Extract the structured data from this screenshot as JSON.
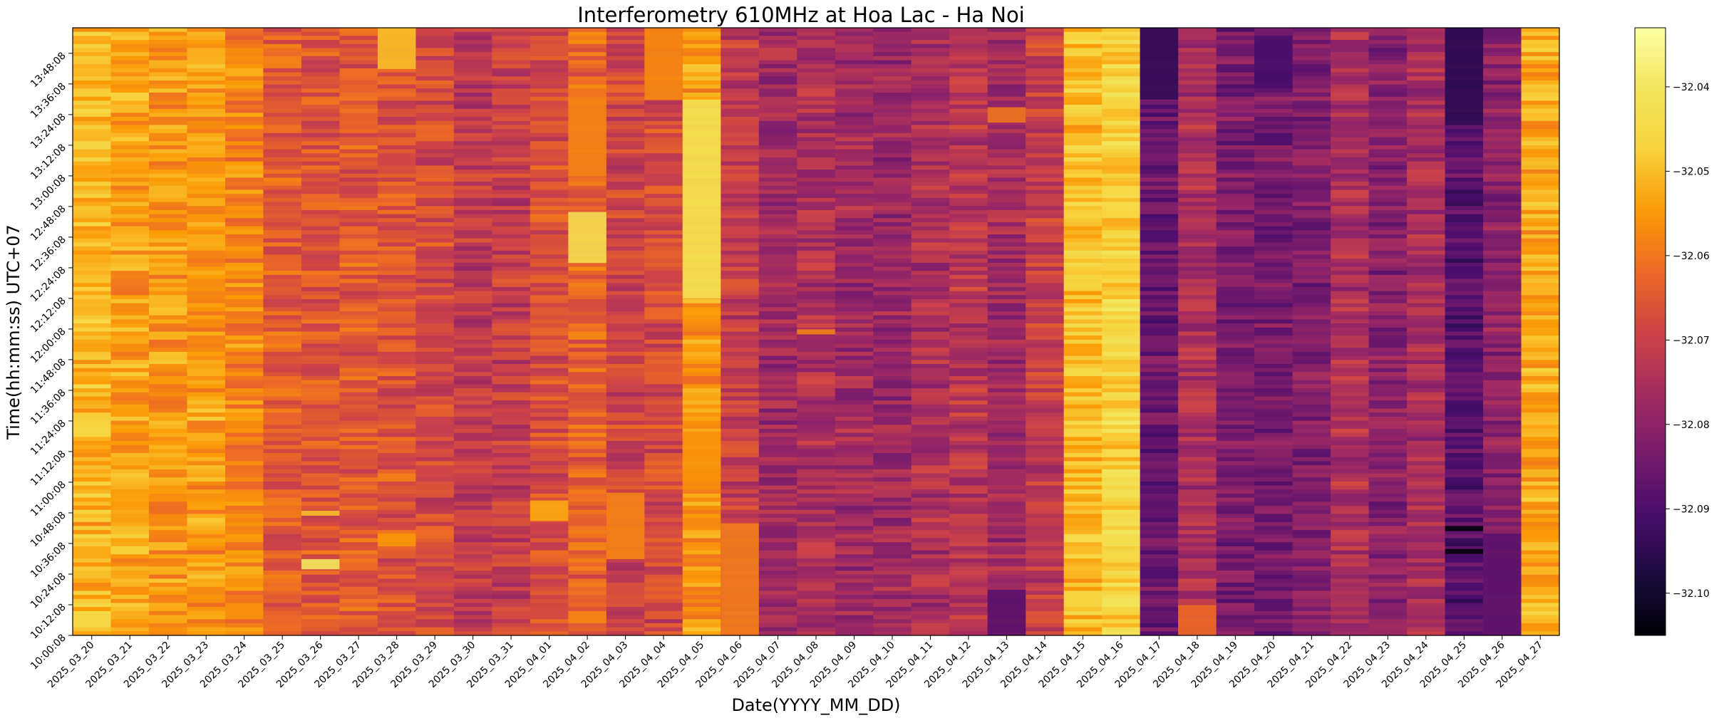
{
  "chart_data": {
    "type": "heatmap",
    "title": "Interferometry 610MHz at Hoa Lac - Ha Noi",
    "xlabel": "Date(YYYY_MM_DD)",
    "ylabel": "Time(hh:mm:ss) UTC+07",
    "colormap": "inferno",
    "colorbar": {
      "vmin": -32.105,
      "vmax": -32.033,
      "tick_values": [
        -32.04,
        -32.05,
        -32.06,
        -32.07,
        -32.08,
        -32.09,
        -32.1
      ],
      "tick_labels": [
        "−32.04",
        "−32.05",
        "−32.06",
        "−32.07",
        "−32.08",
        "−32.09",
        "−32.10"
      ]
    },
    "x_categories": [
      "2025_03_20",
      "2025_03_21",
      "2025_03_22",
      "2025_03_23",
      "2025_03_24",
      "2025_03_25",
      "2025_03_26",
      "2025_03_27",
      "2025_03_28",
      "2025_03_29",
      "2025_03_30",
      "2025_03_31",
      "2025_04_01",
      "2025_04_02",
      "2025_04_03",
      "2025_04_04",
      "2025_04_05",
      "2025_04_06",
      "2025_04_07",
      "2025_04_08",
      "2025_04_09",
      "2025_04_10",
      "2025_04_11",
      "2025_04_12",
      "2025_04_13",
      "2025_04_14",
      "2025_04_15",
      "2025_04_16",
      "2025_04_17",
      "2025_04_18",
      "2025_04_19",
      "2025_04_20",
      "2025_04_21",
      "2025_04_22",
      "2025_04_23",
      "2025_04_24",
      "2025_04_25",
      "2025_04_26",
      "2025_04_27"
    ],
    "y_range": [
      "10:00:08",
      "13:58:08"
    ],
    "y_ticks": [
      "10:00:08",
      "10:12:08",
      "10:24:08",
      "10:36:08",
      "10:48:08",
      "11:00:08",
      "11:12:08",
      "11:24:08",
      "11:36:08",
      "11:48:08",
      "12:00:08",
      "12:12:08",
      "12:24:08",
      "12:36:08",
      "12:48:08",
      "13:00:08",
      "13:12:08",
      "13:24:08",
      "13:36:08",
      "13:48:08"
    ],
    "column_mean_values": [
      -32.051,
      -32.054,
      -32.055,
      -32.055,
      -32.058,
      -32.064,
      -32.066,
      -32.065,
      -32.066,
      -32.068,
      -32.072,
      -32.071,
      -32.067,
      -32.063,
      -32.069,
      -32.068,
      -32.055,
      -32.071,
      -32.077,
      -32.075,
      -32.077,
      -32.078,
      -32.075,
      -32.073,
      -32.077,
      -32.071,
      -32.05,
      -32.046,
      -32.086,
      -32.075,
      -32.083,
      -32.084,
      -32.082,
      -32.075,
      -32.081,
      -32.076,
      -32.088,
      -32.08,
      -32.053
    ],
    "anomalies": [
      {
        "date": "2025_03_26",
        "from": "10:26:00",
        "to": "10:30:00",
        "value": -32.04
      },
      {
        "date": "2025_03_26",
        "from": "10:47:00",
        "to": "10:49:00",
        "value": -32.05
      },
      {
        "date": "2025_03_28",
        "from": "10:35:00",
        "to": "10:40:00",
        "value": -32.055
      },
      {
        "date": "2025_03_28",
        "from": "13:42:00",
        "to": "13:58:08",
        "value": -32.05
      },
      {
        "date": "2025_04_01",
        "from": "10:45:00",
        "to": "10:53:00",
        "value": -32.053
      },
      {
        "date": "2025_04_02",
        "from": "12:26:00",
        "to": "12:46:00",
        "value": -32.043
      },
      {
        "date": "2025_04_02",
        "from": "13:00:00",
        "to": "13:30:00",
        "value": -32.058
      },
      {
        "date": "2025_04_03",
        "from": "10:30:00",
        "to": "10:56:00",
        "value": -32.058
      },
      {
        "date": "2025_04_04",
        "from": "13:30:00",
        "to": "13:58:08",
        "value": -32.057
      },
      {
        "date": "2025_04_05",
        "from": "12:12:00",
        "to": "13:30:00",
        "value": -32.042
      },
      {
        "date": "2025_04_05",
        "from": "11:00:00",
        "to": "11:20:00",
        "value": -32.056
      },
      {
        "date": "2025_04_06",
        "from": "10:00:08",
        "to": "10:44:00",
        "value": -32.059
      },
      {
        "date": "2025_04_08",
        "from": "11:58:00",
        "to": "12:00:00",
        "value": -32.058
      },
      {
        "date": "2025_04_13",
        "from": "13:21:00",
        "to": "13:27:00",
        "value": -32.06
      },
      {
        "date": "2025_04_13",
        "from": "10:00:08",
        "to": "10:18:00",
        "value": -32.088
      },
      {
        "date": "2025_04_17",
        "from": "13:30:00",
        "to": "13:58:08",
        "value": -32.094
      },
      {
        "date": "2025_04_18",
        "from": "10:00:08",
        "to": "10:12:00",
        "value": -32.062
      },
      {
        "date": "2025_04_20",
        "from": "13:36:00",
        "to": "13:55:00",
        "value": -32.091
      },
      {
        "date": "2025_04_25",
        "from": "13:20:00",
        "to": "13:58:08",
        "value": -32.095
      },
      {
        "date": "2025_04_25",
        "from": "10:41:00",
        "to": "10:43:00",
        "value": -32.104
      },
      {
        "date": "2025_04_25",
        "from": "10:32:00",
        "to": "10:34:00",
        "value": -32.104
      },
      {
        "date": "2025_04_26",
        "from": "10:00:08",
        "to": "10:40:00",
        "value": -32.088
      }
    ]
  }
}
